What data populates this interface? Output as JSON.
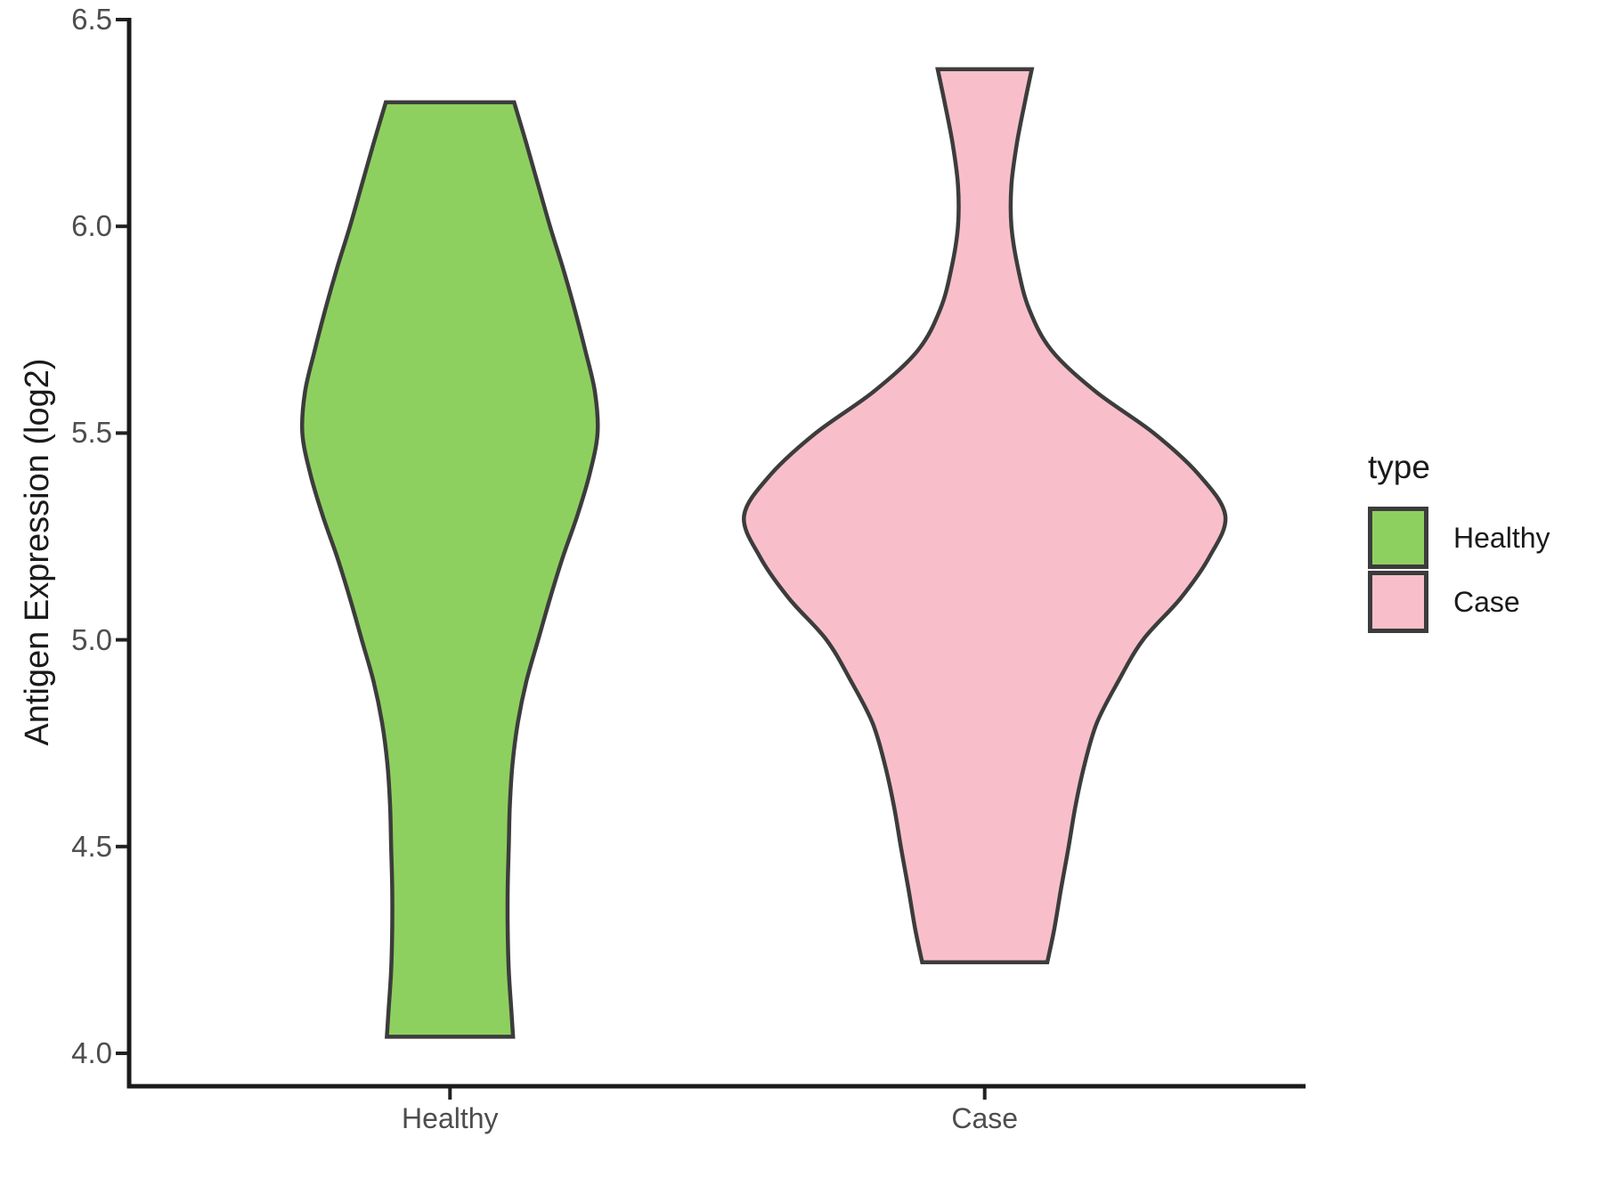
{
  "chart_data": {
    "type": "violin",
    "title": "",
    "xlabel": "",
    "ylabel": "Antigen Expression (log2)",
    "categories": [
      "Healthy",
      "Case"
    ],
    "y_ticks": [
      "6.5",
      "6.0",
      "5.5",
      "5.0",
      "4.5",
      "4.0"
    ],
    "y_tick_values": [
      6.5,
      6.0,
      5.5,
      5.0,
      4.5,
      4.0
    ],
    "y_axis_range": [
      3.925,
      6.5
    ],
    "grid": "off",
    "legend": {
      "title": "type",
      "position": "right",
      "entries": [
        {
          "label": "Healthy",
          "color": "#8ED05F"
        },
        {
          "label": "Case",
          "color": "#F8BFCA"
        }
      ]
    },
    "styles": {
      "violin_outline": "#3C3C3C",
      "axis_line": "#1A1A1A",
      "tick_mark": "#222222",
      "tick_text": "#4D4D4D",
      "axis_title_text": "#1A1A1A"
    },
    "series": [
      {
        "name": "Healthy",
        "fill": "#8ED05F",
        "center_index": 0,
        "value_range": [
          4.04,
          6.3
        ],
        "profile": [
          [
            6.3,
            0.12
          ],
          [
            6.2,
            0.143
          ],
          [
            6.1,
            0.165
          ],
          [
            6.0,
            0.187
          ],
          [
            5.9,
            0.211
          ],
          [
            5.8,
            0.233
          ],
          [
            5.7,
            0.253
          ],
          [
            5.6,
            0.271
          ],
          [
            5.5,
            0.276
          ],
          [
            5.4,
            0.261
          ],
          [
            5.3,
            0.238
          ],
          [
            5.2,
            0.211
          ],
          [
            5.1,
            0.187
          ],
          [
            5.0,
            0.165
          ],
          [
            4.9,
            0.143
          ],
          [
            4.8,
            0.127
          ],
          [
            4.7,
            0.117
          ],
          [
            4.6,
            0.112
          ],
          [
            4.5,
            0.11
          ],
          [
            4.4,
            0.108
          ],
          [
            4.3,
            0.108
          ],
          [
            4.2,
            0.11
          ],
          [
            4.1,
            0.115
          ],
          [
            4.04,
            0.118
          ]
        ]
      },
      {
        "name": "Case",
        "fill": "#F8BFCA",
        "center_index": 1,
        "value_range": [
          4.22,
          6.38
        ],
        "profile": [
          [
            6.38,
            0.088
          ],
          [
            6.3,
            0.075
          ],
          [
            6.2,
            0.06
          ],
          [
            6.1,
            0.05
          ],
          [
            6.0,
            0.05
          ],
          [
            5.9,
            0.062
          ],
          [
            5.8,
            0.083
          ],
          [
            5.7,
            0.125
          ],
          [
            5.6,
            0.208
          ],
          [
            5.5,
            0.316
          ],
          [
            5.4,
            0.4
          ],
          [
            5.3,
            0.45
          ],
          [
            5.2,
            0.42
          ],
          [
            5.1,
            0.366
          ],
          [
            5.0,
            0.296
          ],
          [
            4.9,
            0.25
          ],
          [
            4.8,
            0.21
          ],
          [
            4.7,
            0.187
          ],
          [
            4.6,
            0.17
          ],
          [
            4.5,
            0.157
          ],
          [
            4.4,
            0.143
          ],
          [
            4.3,
            0.13
          ],
          [
            4.22,
            0.117
          ]
        ]
      }
    ]
  }
}
